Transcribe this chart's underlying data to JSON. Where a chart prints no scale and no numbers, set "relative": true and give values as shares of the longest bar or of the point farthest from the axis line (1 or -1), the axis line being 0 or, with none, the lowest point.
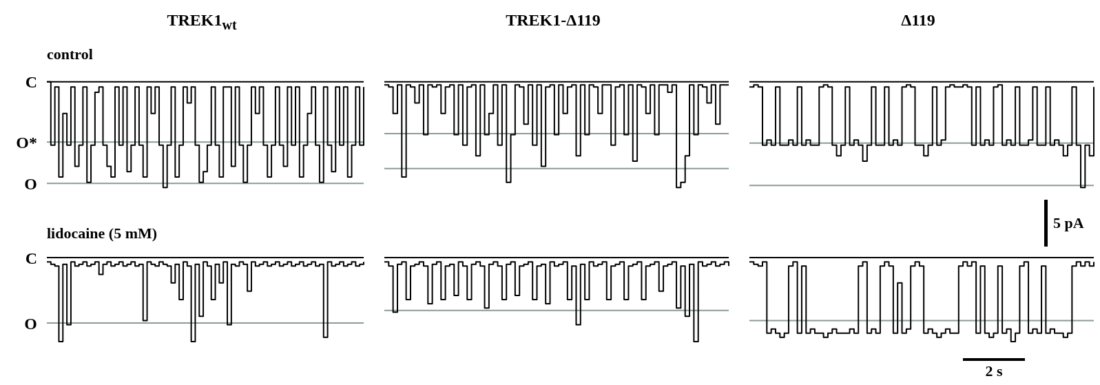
{
  "chart_data": [
    {
      "type": "step",
      "relative": true,
      "title": "TREK1$_{wt}$",
      "subtitle": "control",
      "categories": [
        null,
        null,
        null,
        null,
        null,
        null,
        null,
        null,
        null,
        null,
        null,
        null,
        null,
        null,
        null,
        null,
        null,
        null,
        null,
        null,
        null,
        null,
        null,
        null,
        null,
        null,
        null,
        null,
        null,
        null,
        null,
        null,
        null,
        null,
        null,
        null,
        null,
        null,
        null,
        null,
        null,
        null,
        null,
        null,
        null,
        null,
        null,
        null,
        null,
        null,
        null,
        null,
        null,
        null,
        null,
        null,
        null,
        null,
        null,
        null,
        null,
        null,
        null,
        null,
        null,
        null,
        null,
        null,
        null,
        null,
        null,
        null,
        null,
        null,
        null,
        null,
        null,
        null,
        null,
        null
      ],
      "series": [
        {
          "color": "#000000",
          "values": [
            0,
            -0.6,
            -0.05,
            -0.9,
            -0.3,
            -0.6,
            -0.05,
            -0.8,
            -0.6,
            -0.05,
            -0.95,
            -0.6,
            -0.1,
            -0.05,
            -0.6,
            -0.8,
            -0.9,
            -0.05,
            -0.6,
            -0.05,
            -0.85,
            -0.6,
            -0.05,
            -0.6,
            -0.9,
            -0.05,
            -0.3,
            -0.05,
            -0.6,
            -1,
            -0.6,
            -0.05,
            -0.9,
            -0.6,
            -0.05,
            -0.2,
            -0.05,
            -0.6,
            -0.95,
            -0.85,
            -0.6,
            -0.05,
            -0.6,
            -0.9,
            -0.05,
            -0.05,
            -0.8,
            -0.05,
            -0.6,
            -0.95,
            -0.6,
            -0.05,
            -0.3,
            -0.05,
            -0.6,
            -0.9,
            -0.6,
            -0.05,
            -0.6,
            -0.8,
            -0.05,
            -0.6,
            -0.05,
            -0.9,
            -0.6,
            -0.3,
            -0.05,
            -0.6,
            -0.95,
            -0.05,
            -0.6,
            -0.85,
            -0.05,
            -0.6,
            -0.05,
            -0.9,
            -0.6,
            -0.05,
            -0.6,
            -0.05
          ]
        }
      ],
      "ref_lines": [
        {
          "axis": "y",
          "value": 0,
          "label": "C",
          "color": "#000000"
        },
        {
          "axis": "y",
          "value": -0.57,
          "label": "O*",
          "color": "#8c9a9a"
        },
        {
          "axis": "y",
          "value": -0.96,
          "label": "O",
          "color": "#8c9a9a"
        }
      ]
    },
    {
      "type": "step",
      "relative": true,
      "title": "TREK1-Δ119",
      "categories": [
        null,
        null,
        null,
        null,
        null,
        null,
        null,
        null,
        null,
        null,
        null,
        null,
        null,
        null,
        null,
        null,
        null,
        null,
        null,
        null,
        null,
        null,
        null,
        null,
        null,
        null,
        null,
        null,
        null,
        null,
        null,
        null,
        null,
        null,
        null,
        null,
        null,
        null,
        null,
        null,
        null,
        null,
        null,
        null,
        null,
        null,
        null,
        null,
        null,
        null,
        null,
        null,
        null,
        null,
        null,
        null,
        null,
        null,
        null,
        null,
        null,
        null,
        null,
        null,
        null,
        null,
        null,
        null,
        null,
        null,
        null,
        null,
        null,
        null,
        null,
        null,
        null,
        null,
        null,
        null
      ],
      "series": [
        {
          "color": "#000000",
          "values": [
            -0.03,
            -0.05,
            -0.3,
            -0.03,
            -0.9,
            -0.03,
            -0.05,
            -0.2,
            -0.03,
            -0.5,
            -0.03,
            -0.05,
            -0.03,
            -0.3,
            -0.05,
            -0.03,
            -0.5,
            -0.03,
            -0.6,
            -0.05,
            -0.03,
            -0.7,
            -0.03,
            -0.5,
            -0.3,
            -0.03,
            -0.6,
            -0.03,
            -0.95,
            -0.5,
            -0.03,
            -0.05,
            -0.4,
            -0.03,
            -0.6,
            -0.03,
            -0.8,
            -0.05,
            -0.03,
            -0.5,
            -0.03,
            -0.3,
            -0.05,
            -0.03,
            -0.7,
            -0.03,
            -0.5,
            -0.03,
            -0.05,
            -0.3,
            -0.03,
            -0.03,
            -0.6,
            -0.05,
            -0.03,
            -0.5,
            -0.03,
            -0.75,
            -0.03,
            -0.05,
            -0.3,
            -0.03,
            -0.5,
            -0.03,
            -0.03,
            -0.1,
            -0.03,
            -1,
            -0.95,
            -0.7,
            -0.03,
            -0.5,
            -0.03,
            -0.05,
            -0.2,
            -0.03,
            -0.4,
            -0.03,
            -0.03,
            -0.03
          ]
        }
      ],
      "ref_lines": [
        {
          "axis": "y",
          "value": 0,
          "color": "#000000"
        },
        {
          "axis": "y",
          "value": -0.49,
          "color": "#8c9a9a"
        },
        {
          "axis": "y",
          "value": -0.82,
          "color": "#8c9a9a"
        }
      ]
    },
    {
      "type": "step",
      "relative": true,
      "title": "Δ119",
      "annotations": [
        "5 pA"
      ],
      "categories": [
        null,
        null,
        null,
        null,
        null,
        null,
        null,
        null,
        null,
        null,
        null,
        null,
        null,
        null,
        null,
        null,
        null,
        null,
        null,
        null,
        null,
        null,
        null,
        null,
        null,
        null,
        null,
        null,
        null,
        null,
        null,
        null,
        null,
        null,
        null,
        null,
        null,
        null,
        null,
        null,
        null,
        null,
        null,
        null,
        null,
        null,
        null,
        null,
        null,
        null,
        null,
        null,
        null,
        null,
        null,
        null,
        null,
        null,
        null,
        null,
        null,
        null,
        null,
        null,
        null,
        null,
        null,
        null,
        null,
        null,
        null,
        null,
        null,
        null,
        null,
        null,
        null,
        null,
        null,
        null
      ],
      "series": [
        {
          "color": "#000000",
          "values": [
            -0.05,
            -0.03,
            -0.05,
            -0.6,
            -0.55,
            -0.6,
            -0.05,
            -0.6,
            -0.6,
            -0.55,
            -0.6,
            -0.05,
            -0.6,
            -0.55,
            -0.6,
            -0.6,
            -0.05,
            -0.03,
            -0.05,
            -0.6,
            -0.7,
            -0.6,
            -0.05,
            -0.6,
            -0.55,
            -0.6,
            -0.75,
            -0.6,
            -0.05,
            -0.6,
            -0.6,
            -0.05,
            -0.6,
            -0.55,
            -0.6,
            -0.05,
            -0.03,
            -0.05,
            -0.6,
            -0.6,
            -0.7,
            -0.6,
            -0.05,
            -0.6,
            -0.55,
            -0.05,
            -0.03,
            -0.05,
            -0.05,
            -0.03,
            -0.05,
            -0.6,
            -0.05,
            -0.6,
            -0.55,
            -0.6,
            -0.05,
            -0.03,
            -0.6,
            -0.55,
            -0.6,
            -0.05,
            -0.6,
            -0.6,
            -0.55,
            -0.05,
            -0.6,
            -0.6,
            -0.05,
            -0.6,
            -0.55,
            -0.6,
            -0.7,
            -0.6,
            -0.05,
            -0.6,
            -1,
            -0.6,
            -0.7,
            -0.05
          ]
        }
      ],
      "ref_lines": [
        {
          "axis": "y",
          "value": 0,
          "color": "#000000"
        },
        {
          "axis": "y",
          "value": -0.58,
          "color": "#8c9a9a"
        },
        {
          "axis": "y",
          "value": -0.98,
          "color": "#8c9a9a"
        }
      ]
    },
    {
      "type": "step",
      "relative": true,
      "subtitle": "lidocaine (5 mM)",
      "categories": [
        null,
        null,
        null,
        null,
        null,
        null,
        null,
        null,
        null,
        null,
        null,
        null,
        null,
        null,
        null,
        null,
        null,
        null,
        null,
        null,
        null,
        null,
        null,
        null,
        null,
        null,
        null,
        null,
        null,
        null,
        null,
        null,
        null,
        null,
        null,
        null,
        null,
        null,
        null,
        null,
        null,
        null,
        null,
        null,
        null,
        null,
        null,
        null,
        null,
        null,
        null,
        null,
        null,
        null,
        null,
        null,
        null,
        null,
        null,
        null,
        null,
        null,
        null,
        null,
        null,
        null,
        null,
        null,
        null,
        null,
        null,
        null,
        null,
        null,
        null,
        null,
        null,
        null,
        null,
        null
      ],
      "series": [
        {
          "color": "#000000",
          "values": [
            -0.05,
            -0.08,
            -0.1,
            -1,
            -0.08,
            -0.8,
            -0.05,
            -0.1,
            -0.08,
            -0.05,
            -0.1,
            -0.08,
            -0.05,
            -0.2,
            -0.08,
            -0.05,
            -0.1,
            -0.08,
            -0.05,
            -0.1,
            -0.08,
            -0.05,
            -0.1,
            -0.08,
            -0.75,
            -0.05,
            -0.08,
            -0.1,
            -0.05,
            -0.08,
            -0.1,
            -0.3,
            -0.08,
            -0.5,
            -0.05,
            -0.1,
            -1,
            -0.08,
            -0.7,
            -0.05,
            -0.1,
            -0.5,
            -0.08,
            -0.3,
            -0.05,
            -0.8,
            -0.08,
            -0.1,
            -0.05,
            -0.08,
            -0.4,
            -0.05,
            -0.1,
            -0.08,
            -0.05,
            -0.1,
            -0.08,
            -0.05,
            -0.1,
            -0.08,
            -0.05,
            -0.1,
            -0.08,
            -0.05,
            -0.1,
            -0.08,
            -0.05,
            -0.1,
            -0.08,
            -0.95,
            -0.05,
            -0.1,
            -0.08,
            -0.05,
            -0.1,
            -0.08,
            -0.05,
            -0.1,
            -0.08,
            -0.05
          ]
        }
      ],
      "ref_lines": [
        {
          "axis": "y",
          "value": 0,
          "label": "C",
          "color": "#000000"
        },
        {
          "axis": "y",
          "value": -0.78,
          "label": "O",
          "color": "#8c9a9a"
        }
      ]
    },
    {
      "type": "step",
      "relative": true,
      "categories": [
        null,
        null,
        null,
        null,
        null,
        null,
        null,
        null,
        null,
        null,
        null,
        null,
        null,
        null,
        null,
        null,
        null,
        null,
        null,
        null,
        null,
        null,
        null,
        null,
        null,
        null,
        null,
        null,
        null,
        null,
        null,
        null,
        null,
        null,
        null,
        null,
        null,
        null,
        null,
        null,
        null,
        null,
        null,
        null,
        null,
        null,
        null,
        null,
        null,
        null,
        null,
        null,
        null,
        null,
        null,
        null,
        null,
        null,
        null,
        null,
        null,
        null,
        null,
        null,
        null,
        null,
        null,
        null,
        null,
        null,
        null,
        null,
        null,
        null,
        null,
        null,
        null,
        null,
        null,
        null
      ],
      "series": [
        {
          "color": "#000000",
          "values": [
            -0.05,
            -0.1,
            -0.65,
            -0.08,
            -0.05,
            -0.5,
            -0.1,
            -0.08,
            -0.05,
            -0.1,
            -0.55,
            -0.08,
            -0.05,
            -0.5,
            -0.1,
            -0.08,
            -0.45,
            -0.05,
            -0.1,
            -0.5,
            -0.08,
            -0.05,
            -0.1,
            -0.6,
            -0.08,
            -0.05,
            -0.1,
            -0.5,
            -0.08,
            -0.05,
            -0.45,
            -0.1,
            -0.08,
            -0.05,
            -0.5,
            -0.1,
            -0.08,
            -0.55,
            -0.05,
            -0.1,
            -0.08,
            -0.05,
            -0.5,
            -0.1,
            -0.8,
            -0.08,
            -0.5,
            -0.05,
            -0.1,
            -0.08,
            -0.05,
            -0.5,
            -0.1,
            -0.08,
            -0.05,
            -0.5,
            -0.1,
            -0.08,
            -0.05,
            -0.5,
            -0.1,
            -0.08,
            -0.05,
            -0.4,
            -0.1,
            -0.08,
            -0.05,
            -0.6,
            -0.1,
            -0.7,
            -0.08,
            -1,
            -0.05,
            -0.1,
            -0.08,
            -0.05,
            -0.1,
            -0.08,
            -0.05,
            -0.1
          ]
        }
      ],
      "ref_lines": [
        {
          "axis": "y",
          "value": 0,
          "color": "#000000"
        },
        {
          "axis": "y",
          "value": -0.63,
          "color": "#8c9a9a"
        }
      ]
    },
    {
      "type": "step",
      "relative": true,
      "annotations": [
        "2 s"
      ],
      "categories": [
        null,
        null,
        null,
        null,
        null,
        null,
        null,
        null,
        null,
        null,
        null,
        null,
        null,
        null,
        null,
        null,
        null,
        null,
        null,
        null,
        null,
        null,
        null,
        null,
        null,
        null,
        null,
        null,
        null,
        null,
        null,
        null,
        null,
        null,
        null,
        null,
        null,
        null,
        null,
        null,
        null,
        null,
        null,
        null,
        null,
        null,
        null,
        null,
        null,
        null,
        null,
        null,
        null,
        null,
        null,
        null,
        null,
        null,
        null,
        null,
        null,
        null,
        null,
        null,
        null,
        null,
        null,
        null,
        null,
        null,
        null,
        null,
        null,
        null,
        null,
        null,
        null,
        null,
        null,
        null
      ],
      "series": [
        {
          "color": "#000000",
          "values": [
            -0.05,
            -0.08,
            -0.1,
            -0.05,
            -0.9,
            -0.85,
            -0.9,
            -0.95,
            -0.9,
            -0.1,
            -0.05,
            -0.9,
            -0.1,
            -0.9,
            -0.85,
            -0.9,
            -0.9,
            -0.95,
            -0.9,
            -0.85,
            -0.9,
            -0.9,
            -0.9,
            -0.85,
            -0.9,
            -0.1,
            -0.05,
            -0.9,
            -0.85,
            -0.9,
            -0.1,
            -0.05,
            -0.1,
            -0.9,
            -0.3,
            -0.9,
            -0.85,
            -0.1,
            -0.05,
            -0.1,
            -0.9,
            -0.85,
            -0.9,
            -0.95,
            -0.9,
            -0.85,
            -0.9,
            -0.9,
            -0.1,
            -0.05,
            -0.1,
            -0.05,
            -0.9,
            -0.1,
            -0.9,
            -0.95,
            -0.9,
            -0.1,
            -0.9,
            -0.85,
            -1,
            -0.9,
            -0.1,
            -0.05,
            -0.9,
            -0.85,
            -0.9,
            -0.1,
            -0.9,
            -0.85,
            -0.9,
            -0.9,
            -0.95,
            -0.9,
            -0.1,
            -0.05,
            -0.1,
            -0.05,
            -0.1,
            -0.05
          ]
        }
      ],
      "ref_lines": [
        {
          "axis": "y",
          "value": 0,
          "color": "#000000"
        },
        {
          "axis": "y",
          "value": -0.75,
          "color": "#8c9a9a"
        }
      ]
    }
  ]
}
